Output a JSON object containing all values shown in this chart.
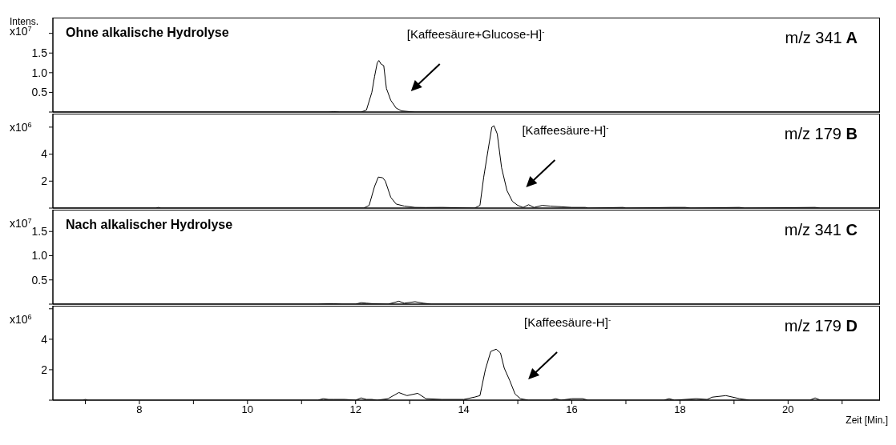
{
  "chart_data": [
    {
      "type": "line",
      "title": "Ohne alkalische Hydrolyse",
      "ylabel": "Intens. x10$^{7}$",
      "tick_labels": "y",
      "xlim": [
        6.4,
        21.7
      ],
      "ylim": [
        0,
        2.4
      ],
      "xticks": [
        8,
        10,
        12,
        14,
        16,
        18,
        20
      ],
      "yticks": [
        {
          "value": 0,
          "label": null
        },
        {
          "value": 0.5,
          "label": "0.5"
        },
        {
          "value": 1,
          "label": "1.0"
        },
        {
          "value": 1.5,
          "label": "1.5"
        },
        {
          "value": 2,
          "label": null
        }
      ],
      "annotations": [
        "[Kaffeesäure+Glucose-H]$^{-}$",
        "m/z 341",
        "A"
      ],
      "x": [
        6.4,
        11.5,
        11.6,
        11.7,
        12.1,
        12.2,
        12.3,
        12.35,
        12.4,
        12.43,
        12.47,
        12.52,
        12.57,
        12.65,
        12.75,
        12.85,
        13.0,
        13.1,
        21.7
      ],
      "series": [
        {
          "color": "#000000",
          "values": [
            0,
            0,
            0.01,
            0,
            0,
            0.05,
            0.5,
            0.9,
            1.25,
            1.31,
            1.22,
            1.18,
            0.6,
            0.3,
            0.1,
            0.03,
            0.01,
            0,
            0
          ]
        }
      ]
    },
    {
      "type": "line",
      "ylabel": "x10$^{6}$",
      "tick_labels": "y",
      "xlim": [
        6.4,
        21.7
      ],
      "ylim": [
        0,
        7
      ],
      "xticks": [
        8,
        10,
        12,
        14,
        16,
        18,
        20
      ],
      "yticks": [
        {
          "value": 0,
          "label": null
        },
        {
          "value": 2,
          "label": "2"
        },
        {
          "value": 4,
          "label": "4"
        },
        {
          "value": 6,
          "label": null
        }
      ],
      "annotations": [
        "[Kaffeesäure-H]$^{-}$",
        "m/z 179",
        "B"
      ],
      "x": [
        6.4,
        8.3,
        8.35,
        8.4,
        12.15,
        12.25,
        12.35,
        12.42,
        12.5,
        12.55,
        12.65,
        12.75,
        12.9,
        13.1,
        13.3,
        13.6,
        14.2,
        14.3,
        14.37,
        14.45,
        14.52,
        14.56,
        14.62,
        14.7,
        14.8,
        14.9,
        15.0,
        15.1,
        15.2,
        15.3,
        15.45,
        15.6,
        15.8,
        16.0,
        16.25,
        16.3,
        16.95,
        17.0,
        17.85,
        18.1,
        18.2,
        19.1,
        19.2,
        20.5,
        20.6,
        21.7
      ],
      "series": [
        {
          "color": "#000000",
          "values": [
            0,
            0,
            0.05,
            0,
            0,
            0.2,
            1.6,
            2.3,
            2.25,
            2.0,
            0.8,
            0.3,
            0.15,
            0.05,
            0.04,
            0.05,
            0,
            0.2,
            2.3,
            4.3,
            6.0,
            6.1,
            5.5,
            3.0,
            1.3,
            0.5,
            0.2,
            0.05,
            0.25,
            0.05,
            0.2,
            0.15,
            0.1,
            0.05,
            0.05,
            0,
            0.05,
            0,
            0.05,
            0.05,
            0,
            0.05,
            0,
            0.05,
            0,
            0
          ]
        }
      ]
    },
    {
      "type": "line",
      "title": "Nach alkalischer Hydrolyse",
      "ylabel": "x10$^{7}$",
      "tick_labels": "y",
      "xlim": [
        6.4,
        21.7
      ],
      "ylim": [
        0,
        1.95
      ],
      "xticks": [
        8,
        10,
        12,
        14,
        16,
        18,
        20
      ],
      "yticks": [
        {
          "value": 0,
          "label": null
        },
        {
          "value": 0.5,
          "label": "0.5"
        },
        {
          "value": 1,
          "label": "1.0"
        },
        {
          "value": 1.5,
          "label": "1.5"
        }
      ],
      "annotations": [
        "m/z 341",
        "C"
      ],
      "x": [
        6.4,
        11.3,
        11.5,
        11.6,
        11.75,
        12.0,
        12.1,
        12.2,
        12.3,
        12.6,
        12.8,
        12.9,
        13.1,
        13.25,
        13.4,
        21.7
      ],
      "series": [
        {
          "color": "#000000",
          "values": [
            0,
            0,
            0.01,
            0.01,
            0,
            0,
            0.03,
            0.02,
            0.01,
            0,
            0.06,
            0.02,
            0.05,
            0.02,
            0,
            0
          ]
        }
      ]
    },
    {
      "type": "line",
      "ylabel": "x10$^{6}$",
      "xlabel": "Zeit [Min.]",
      "xlim": [
        6.4,
        21.7
      ],
      "ylim": [
        0,
        6.2
      ],
      "xticks": [
        {
          "value": 7,
          "label": null
        },
        8,
        {
          "value": 9,
          "label": null
        },
        10,
        {
          "value": 11,
          "label": null
        },
        12,
        {
          "value": 13,
          "label": null
        },
        14,
        {
          "value": 15,
          "label": null
        },
        16,
        {
          "value": 17,
          "label": null
        },
        18,
        {
          "value": 19,
          "label": null
        },
        20,
        {
          "value": 21,
          "label": null
        }
      ],
      "yticks": [
        {
          "value": 0,
          "label": null
        },
        {
          "value": 2,
          "label": "2"
        },
        {
          "value": 4,
          "label": "4"
        },
        {
          "value": 6,
          "label": null
        }
      ],
      "annotations": [
        "[Kaffeesäure-H]$^{-}$",
        "m/z 179",
        "D"
      ],
      "x": [
        6.4,
        6.95,
        7.0,
        7.05,
        11.3,
        11.4,
        11.5,
        11.6,
        11.8,
        12.0,
        12.1,
        12.2,
        12.3,
        12.4,
        12.6,
        12.8,
        12.95,
        13.15,
        13.3,
        13.6,
        14.0,
        14.2,
        14.3,
        14.4,
        14.5,
        14.6,
        14.68,
        14.75,
        14.85,
        14.95,
        15.05,
        15.2,
        15.6,
        15.7,
        15.8,
        16.0,
        16.2,
        16.3,
        17.7,
        17.8,
        17.9,
        18.3,
        18.5,
        18.6,
        18.85,
        19.1,
        19.3,
        20.4,
        20.5,
        20.6,
        21.7
      ],
      "series": [
        {
          "color": "#000000",
          "values": [
            0,
            0,
            0.05,
            0,
            0,
            0.1,
            0.05,
            0.05,
            0.05,
            0,
            0.15,
            0.05,
            0.05,
            0,
            0.1,
            0.5,
            0.3,
            0.45,
            0.1,
            0.05,
            0.05,
            0.2,
            0.3,
            2.0,
            3.2,
            3.35,
            3.1,
            2.1,
            1.3,
            0.4,
            0.1,
            0,
            0,
            0.1,
            0,
            0.1,
            0.1,
            0,
            0,
            0.1,
            0,
            0.1,
            0.05,
            0.2,
            0.3,
            0.1,
            0,
            0,
            0.15,
            0,
            0
          ]
        }
      ]
    }
  ]
}
